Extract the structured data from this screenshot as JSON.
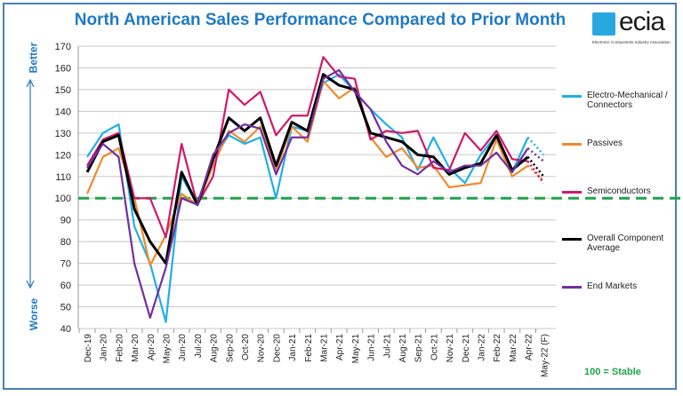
{
  "chart_data": {
    "type": "line",
    "title": "North American Sales Performance Compared to Prior Month",
    "categories": [
      "Dec-19",
      "Jan-20",
      "Feb-20",
      "Mar-20",
      "Apr-20",
      "May-20",
      "Jun-20",
      "Jul-20",
      "Aug-20",
      "Sep-20",
      "Oct-20",
      "Nov-20",
      "Dec-20",
      "Jan-21",
      "Feb-21",
      "Mar-21",
      "Apr-21",
      "May-21",
      "Jun-21",
      "Jul-21",
      "Aug-21",
      "Sep-21",
      "Oct-21",
      "Nov-21",
      "Dec-21",
      "Jan-22",
      "Feb-22",
      "Mar-22",
      "Apr-22",
      "May-22 (F)"
    ],
    "ylim": [
      40,
      170
    ],
    "yticks": [
      40,
      50,
      60,
      70,
      80,
      90,
      100,
      110,
      120,
      130,
      140,
      150,
      160,
      170
    ],
    "grid": true,
    "legend": "right",
    "reference_line": {
      "value": 100,
      "label": "100 = Stable",
      "color": "#1fa34a",
      "style": "dashed"
    },
    "forecast_note": "last point (May-22 (F)) drawn dotted",
    "series": [
      {
        "name": "Electro-Mechanical / Connectors",
        "color": "#1fb0e6",
        "values": [
          119,
          130,
          134,
          87,
          70,
          43,
          110,
          97,
          118,
          129,
          125,
          128,
          100,
          133,
          131,
          153,
          157,
          149,
          141,
          134,
          128,
          113,
          128,
          114,
          107,
          120,
          129,
          112,
          128,
          120
        ]
      },
      {
        "name": "Passives",
        "color": "#f08a2c",
        "values": [
          102,
          119,
          123,
          100,
          69,
          83,
          102,
          97,
          115,
          131,
          126,
          133,
          113,
          133,
          126,
          154,
          146,
          151,
          128,
          119,
          123,
          114,
          115,
          105,
          106,
          107,
          127,
          110,
          115,
          108
        ]
      },
      {
        "name": "Semiconductors",
        "color": "#d0186a",
        "values": [
          115,
          127,
          130,
          100,
          100,
          82,
          125,
          97,
          110,
          150,
          143,
          149,
          129,
          138,
          138,
          165,
          156,
          155,
          127,
          131,
          130,
          131,
          114,
          113,
          130,
          122,
          131,
          118,
          117,
          107
        ]
      },
      {
        "name": "Overall Component Average",
        "color": "#000000",
        "values": [
          112,
          126,
          129,
          95,
          80,
          70,
          112,
          97,
          118,
          137,
          131,
          137,
          115,
          135,
          131,
          157,
          152,
          150,
          130,
          128,
          126,
          120,
          119,
          111,
          114,
          116,
          129,
          113,
          119,
          110
        ]
      },
      {
        "name": "End Markets",
        "color": "#7030a0",
        "values": [
          114,
          125,
          119,
          70,
          45,
          68,
          100,
          97,
          120,
          130,
          134,
          132,
          111,
          128,
          128,
          155,
          159,
          149,
          141,
          126,
          115,
          111,
          117,
          112,
          115,
          115,
          121,
          112,
          123,
          117
        ]
      }
    ]
  },
  "side_labels": {
    "better": "Better",
    "worse": "Worse"
  },
  "logo": {
    "word": "ecia",
    "tagline": "Electronic Components Industry Association"
  },
  "colors": {
    "frame": "#4a7ebb",
    "title": "#1f7ac4",
    "grid": "#c8c8c8"
  }
}
